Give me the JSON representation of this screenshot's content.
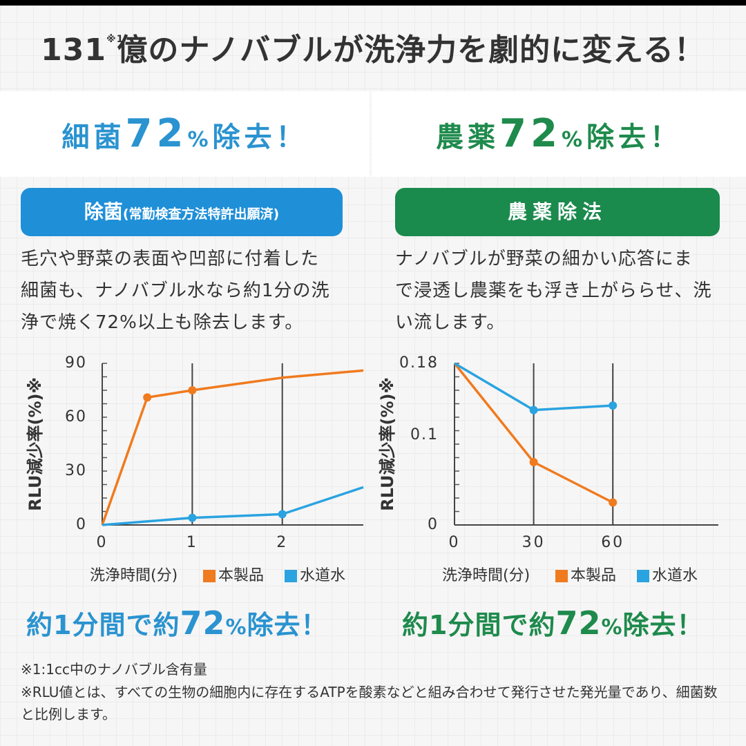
{
  "headline": {
    "text": "131億のナノバブルが洗浄力を劇的に変える！",
    "lead": "131",
    "note": "※1",
    "rest": "億のナノバブルが洗浄力を劇的に変える！"
  },
  "banners": {
    "left": {
      "before": "細菌",
      "num": "72",
      "pct": "%",
      "after": "除去！"
    },
    "right": {
      "before": "農薬",
      "num": "72",
      "pct": "%",
      "after": "除去！"
    }
  },
  "pills": {
    "left": {
      "main": "除菌",
      "sub": "(常勤検査方法特許出願済)"
    },
    "right": {
      "main": "農薬除法"
    }
  },
  "descriptions": {
    "left": [
      "毛穴や野菜の表面や凹部に付着した",
      "細菌も、ナノバブル水なら約1分の洗",
      "浄で焼く72%以上も除去します。"
    ],
    "right": [
      "ナノバブルが野菜の細かい応答にま",
      "で浸透し農薬をも浮き上がららせ、洗",
      "い流します。"
    ]
  },
  "chart_data": [
    {
      "type": "line",
      "ylabel": "RLU減少率(%)※",
      "xlabel": "洗浄時間(分)",
      "yticks": [
        0,
        30,
        60,
        90
      ],
      "xticks": [
        0,
        1,
        2
      ],
      "ylim": [
        0,
        90
      ],
      "xlim": [
        0,
        2.9
      ],
      "grid": "vertical lines at x ticks",
      "series": [
        {
          "name": "本製品",
          "color": "#f07a1e",
          "x": [
            0,
            0.5,
            1,
            2,
            2.9
          ],
          "y": [
            0,
            71,
            75,
            82,
            86
          ],
          "markers": [
            1,
            2
          ]
        },
        {
          "name": "水道水",
          "color": "#2aa3e0",
          "x": [
            0,
            1,
            2,
            2.9
          ],
          "y": [
            0,
            4,
            6,
            21
          ],
          "markers": [
            1,
            2
          ]
        }
      ]
    },
    {
      "type": "line",
      "ylabel": "RLU減少率(%)※",
      "xlabel": "洗浄時間(分)",
      "yticks": [
        "0",
        "0.1",
        "0.18"
      ],
      "ytick_values": [
        0,
        0.1,
        0.18
      ],
      "xticks": [
        0,
        30,
        60
      ],
      "ylim": [
        0,
        0.18
      ],
      "xlim": [
        0,
        100
      ],
      "grid": "vertical lines at x ticks",
      "series": [
        {
          "name": "本製品",
          "color": "#f07a1e",
          "x": [
            0,
            30,
            60
          ],
          "y": [
            0.18,
            0.07,
            0.025
          ],
          "markers": [
            1,
            2
          ]
        },
        {
          "name": "水道水",
          "color": "#2aa3e0",
          "x": [
            0,
            30,
            60
          ],
          "y": [
            0.18,
            0.128,
            0.133
          ],
          "markers": [
            1,
            2
          ]
        }
      ]
    }
  ],
  "results": {
    "left": {
      "before": "約1分間で約",
      "num": "72",
      "pct": "%",
      "after": "除去！"
    },
    "right": {
      "before": "約1分間で約",
      "num": "72",
      "pct": "%",
      "after": "除去！"
    }
  },
  "footnotes": [
    "※1:1cc中のナノバブル含有量",
    "※RLU値とは、すべての生物の細胞内に存在するATPを酸素などと組み合わせて発行させた発光量であり、細菌数と比例します。"
  ]
}
